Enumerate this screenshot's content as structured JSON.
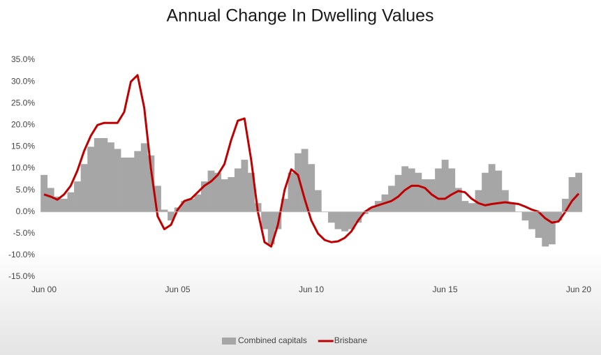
{
  "chart_data": {
    "type": "bar_line",
    "title": "Annual Change In Dwelling Values",
    "categories": [
      "Jun 00",
      null,
      null,
      null,
      null,
      null,
      null,
      null,
      null,
      null,
      null,
      null,
      null,
      null,
      null,
      null,
      null,
      null,
      null,
      null,
      "Jun 05",
      null,
      null,
      null,
      null,
      null,
      null,
      null,
      null,
      null,
      null,
      null,
      null,
      null,
      null,
      null,
      null,
      null,
      null,
      null,
      "Jun 10",
      null,
      null,
      null,
      null,
      null,
      null,
      null,
      null,
      null,
      null,
      null,
      null,
      null,
      null,
      null,
      null,
      null,
      null,
      null,
      "Jun 15",
      null,
      null,
      null,
      null,
      null,
      null,
      null,
      null,
      null,
      null,
      null,
      null,
      null,
      null,
      null,
      null,
      null,
      null,
      null,
      "Jun 20"
    ],
    "series": [
      {
        "name": "Combined capitals",
        "kind": "bar",
        "color": "#a6a6a6",
        "values": [
          8.5,
          5.5,
          3.5,
          3,
          4.5,
          7,
          11,
          15,
          17,
          17,
          16,
          14.5,
          12.5,
          12.5,
          14,
          15.8,
          13,
          6,
          0.5,
          -2,
          1,
          2.5,
          3,
          4,
          7,
          9.5,
          9,
          7.5,
          8,
          10,
          12,
          9,
          2,
          -4,
          -7.5,
          -4,
          3,
          9,
          13.5,
          14.5,
          11,
          5,
          0,
          -2.5,
          -4,
          -4.5,
          -4,
          -2.5,
          -0.5,
          1,
          2.5,
          4,
          6,
          8.5,
          10.5,
          10,
          9,
          7.5,
          7.5,
          10,
          12,
          10,
          5.5,
          2.5,
          2,
          5,
          9,
          11,
          9.5,
          5,
          2,
          0,
          -2,
          -4,
          -6,
          -8,
          -7.5,
          -2,
          3,
          8,
          9
        ]
      },
      {
        "name": "Brisbane",
        "kind": "line",
        "color": "#c00000",
        "values": [
          4,
          3.5,
          2.8,
          4,
          6,
          9.5,
          14,
          17.5,
          20,
          20.5,
          20.5,
          20.5,
          23,
          30,
          31.5,
          24,
          10,
          -1,
          -4,
          -3,
          0.5,
          2.5,
          3,
          4.5,
          6,
          7,
          8.5,
          11,
          16.5,
          21,
          21.5,
          12,
          0,
          -7,
          -8,
          -3,
          5,
          9.8,
          8.5,
          3,
          -2,
          -5,
          -6.5,
          -7,
          -6.8,
          -6,
          -4.5,
          -2,
          0,
          1,
          1.5,
          2,
          2.5,
          3.5,
          5,
          6,
          6,
          5.5,
          4,
          3,
          3,
          4,
          4.8,
          4.5,
          3,
          2,
          1.5,
          1.8,
          2,
          2.2,
          2,
          1.8,
          1.2,
          0.5,
          0,
          -1.5,
          -2.5,
          -2.2,
          0,
          2.5,
          4.2
        ]
      }
    ],
    "ylim": [
      -15,
      35
    ],
    "yticks": [
      {
        "value": -15,
        "label": "-15.0%"
      },
      {
        "value": -10,
        "label": "-10.0%"
      },
      {
        "value": -5,
        "label": "-5.0%"
      },
      {
        "value": 0,
        "label": "0.0%"
      },
      {
        "value": 5,
        "label": "5.0%"
      },
      {
        "value": 10,
        "label": "10.0%"
      },
      {
        "value": 15,
        "label": "15.0%"
      },
      {
        "value": 20,
        "label": "20.0%"
      },
      {
        "value": 25,
        "label": "25.0%"
      },
      {
        "value": 30,
        "label": "30.0%"
      },
      {
        "value": 35,
        "label": "35.0%"
      }
    ],
    "legend": "bottom"
  }
}
